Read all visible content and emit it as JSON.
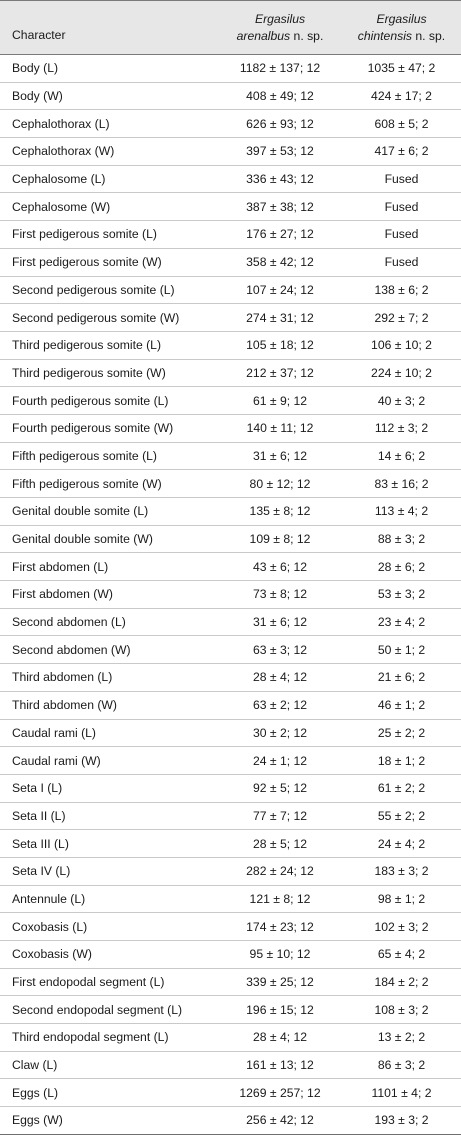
{
  "header": {
    "col1": "Character",
    "col2_genus": "Ergasilus",
    "col2_species": "arenalbus",
    "col2_suffix": " n. sp.",
    "col3_genus": "Ergasilus",
    "col3_species": "chintensis",
    "col3_suffix": " n. sp."
  },
  "rows": [
    {
      "character": "Body (L)",
      "arenalbus": "1182 ± 137; 12",
      "chintensis": "1035 ± 47; 2"
    },
    {
      "character": "Body (W)",
      "arenalbus": "408 ± 49; 12",
      "chintensis": "424 ± 17; 2"
    },
    {
      "character": "Cephalothorax (L)",
      "arenalbus": "626 ± 93; 12",
      "chintensis": "608 ± 5; 2"
    },
    {
      "character": "Cephalothorax (W)",
      "arenalbus": "397 ± 53; 12",
      "chintensis": "417 ± 6; 2"
    },
    {
      "character": "Cephalosome (L)",
      "arenalbus": "336 ± 43; 12",
      "chintensis": "Fused"
    },
    {
      "character": "Cephalosome (W)",
      "arenalbus": "387 ± 38; 12",
      "chintensis": "Fused"
    },
    {
      "character": "First pedigerous somite (L)",
      "arenalbus": "176 ± 27; 12",
      "chintensis": "Fused"
    },
    {
      "character": "First pedigerous somite (W)",
      "arenalbus": "358 ± 42; 12",
      "chintensis": "Fused"
    },
    {
      "character": "Second pedigerous somite (L)",
      "arenalbus": "107 ± 24; 12",
      "chintensis": "138 ± 6; 2"
    },
    {
      "character": "Second pedigerous somite (W)",
      "arenalbus": "274 ± 31; 12",
      "chintensis": "292 ± 7; 2"
    },
    {
      "character": "Third pedigerous somite (L)",
      "arenalbus": "105 ± 18; 12",
      "chintensis": "106 ± 10; 2"
    },
    {
      "character": "Third pedigerous somite (W)",
      "arenalbus": "212 ± 37; 12",
      "chintensis": "224 ± 10; 2"
    },
    {
      "character": "Fourth pedigerous somite (L)",
      "arenalbus": "61 ± 9; 12",
      "chintensis": "40 ± 3; 2"
    },
    {
      "character": "Fourth pedigerous somite (W)",
      "arenalbus": "140 ± 11; 12",
      "chintensis": "112 ± 3; 2"
    },
    {
      "character": "Fifth pedigerous somite (L)",
      "arenalbus": "31 ± 6; 12",
      "chintensis": "14 ± 6; 2"
    },
    {
      "character": "Fifth pedigerous somite (W)",
      "arenalbus": "80 ± 12; 12",
      "chintensis": "83 ± 16; 2"
    },
    {
      "character": "Genital double somite (L)",
      "arenalbus": "135 ± 8; 12",
      "chintensis": "113 ± 4; 2"
    },
    {
      "character": "Genital double somite (W)",
      "arenalbus": "109 ± 8; 12",
      "chintensis": "88 ± 3; 2"
    },
    {
      "character": "First abdomen (L)",
      "arenalbus": "43 ± 6; 12",
      "chintensis": "28 ± 6; 2"
    },
    {
      "character": "First abdomen (W)",
      "arenalbus": "73 ± 8; 12",
      "chintensis": "53 ± 3; 2"
    },
    {
      "character": "Second abdomen (L)",
      "arenalbus": "31 ± 6; 12",
      "chintensis": "23 ± 4; 2"
    },
    {
      "character": "Second abdomen (W)",
      "arenalbus": "63 ± 3; 12",
      "chintensis": "50 ± 1; 2"
    },
    {
      "character": "Third abdomen (L)",
      "arenalbus": "28 ± 4; 12",
      "chintensis": "21 ± 6; 2"
    },
    {
      "character": "Third abdomen (W)",
      "arenalbus": "63 ± 2; 12",
      "chintensis": "46 ± 1; 2"
    },
    {
      "character": "Caudal rami (L)",
      "arenalbus": "30 ± 2; 12",
      "chintensis": "25 ± 2; 2"
    },
    {
      "character": "Caudal rami (W)",
      "arenalbus": "24 ± 1; 12",
      "chintensis": "18 ± 1; 2"
    },
    {
      "character": "Seta I (L)",
      "arenalbus": "92 ± 5; 12",
      "chintensis": "61 ± 2; 2"
    },
    {
      "character": "Seta II (L)",
      "arenalbus": "77 ± 7; 12",
      "chintensis": "55 ± 2; 2"
    },
    {
      "character": "Seta III (L)",
      "arenalbus": "28 ± 5; 12",
      "chintensis": "24 ± 4; 2"
    },
    {
      "character": "Seta IV (L)",
      "arenalbus": "282 ± 24; 12",
      "chintensis": "183 ± 3; 2"
    },
    {
      "character": "Antennule (L)",
      "arenalbus": "121 ± 8; 12",
      "chintensis": "98 ± 1; 2"
    },
    {
      "character": "Coxobasis (L)",
      "arenalbus": "174 ± 23; 12",
      "chintensis": "102 ± 3; 2"
    },
    {
      "character": "Coxobasis (W)",
      "arenalbus": "95 ± 10; 12",
      "chintensis": "65 ± 4; 2"
    },
    {
      "character": "First endopodal segment (L)",
      "arenalbus": "339 ± 25; 12",
      "chintensis": "184 ± 2; 2"
    },
    {
      "character": "Second endopodal segment (L)",
      "arenalbus": "196 ± 15; 12",
      "chintensis": "108 ± 3; 2"
    },
    {
      "character": "Third endopodal segment (L)",
      "arenalbus": "28 ± 4; 12",
      "chintensis": "13 ± 2; 2"
    },
    {
      "character": "Claw (L)",
      "arenalbus": "161 ± 13; 12",
      "chintensis": "86 ± 3; 2"
    },
    {
      "character": "Eggs (L)",
      "arenalbus": "1269 ± 257; 12",
      "chintensis": "1101 ± 4; 2"
    },
    {
      "character": "Eggs (W)",
      "arenalbus": "256 ± 42; 12",
      "chintensis": "193 ± 3; 2"
    }
  ]
}
